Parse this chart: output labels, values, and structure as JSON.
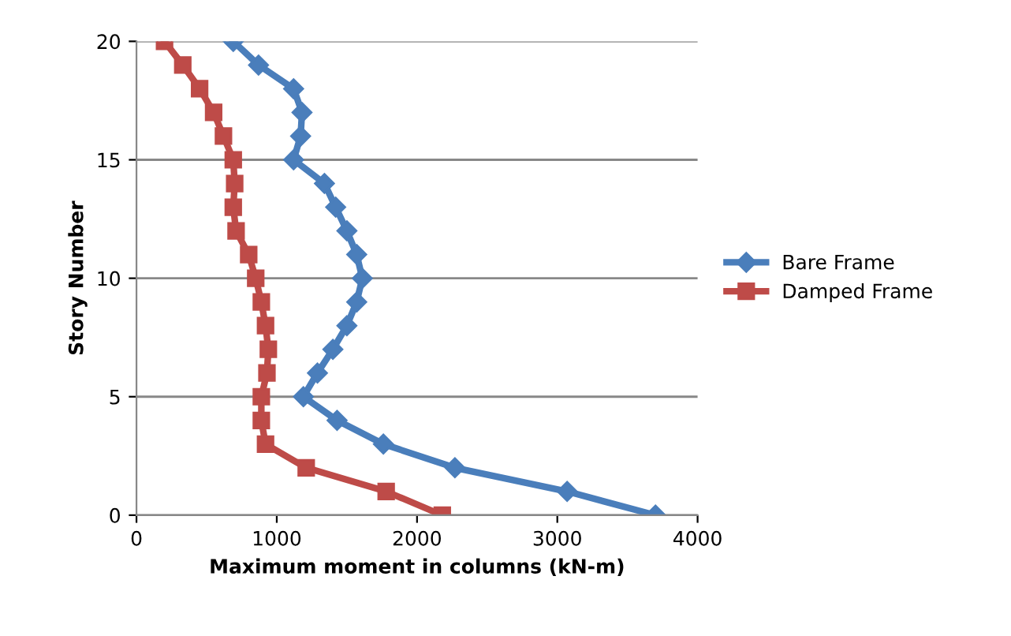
{
  "chart_data": {
    "type": "line",
    "xlabel": "Maximum moment in columns (kN-m)",
    "ylabel": "Story Number",
    "xlim": [
      0,
      4000
    ],
    "xticks": [
      0,
      1000,
      2000,
      3000,
      4000
    ],
    "ylim": [
      0,
      20
    ],
    "yticks": [
      0,
      5,
      10,
      15,
      20
    ],
    "grid": "y",
    "legend": "right",
    "series": [
      {
        "name": "Bare Frame",
        "color": "#4a7ebb",
        "marker": "diamond",
        "x": [
          3700,
          3070,
          2270,
          1760,
          1430,
          1190,
          1290,
          1400,
          1500,
          1570,
          1610,
          1570,
          1500,
          1420,
          1340,
          1120,
          1170,
          1180,
          1120,
          870,
          690
        ],
        "values": [
          0,
          1,
          2,
          3,
          4,
          5,
          6,
          7,
          8,
          9,
          10,
          11,
          12,
          13,
          14,
          15,
          16,
          17,
          18,
          19,
          20
        ]
      },
      {
        "name": "Damped Frame",
        "color": "#be4b48",
        "marker": "square",
        "x": [
          2180,
          1780,
          1210,
          920,
          890,
          890,
          930,
          940,
          920,
          890,
          850,
          800,
          710,
          690,
          700,
          690,
          620,
          550,
          450,
          330,
          200
        ],
        "values": [
          0,
          1,
          2,
          3,
          4,
          5,
          6,
          7,
          8,
          9,
          10,
          11,
          12,
          13,
          14,
          15,
          16,
          17,
          18,
          19,
          20
        ]
      }
    ]
  }
}
